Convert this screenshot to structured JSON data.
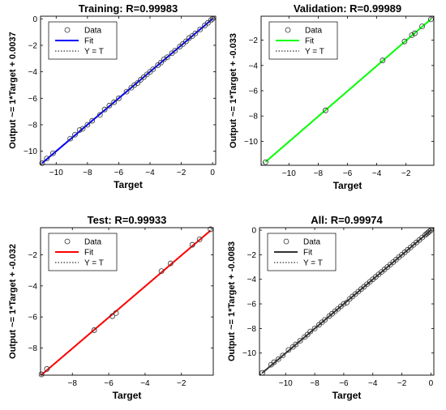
{
  "chart_data": [
    {
      "type": "scatter",
      "title": "Training: R=0.99983",
      "xlabel": "Target",
      "ylabel": "Output ~= 1*Target + 0.0037",
      "xlim": [
        -11.0,
        0.2
      ],
      "ylim": [
        -11.0,
        0.2
      ],
      "xticks": [
        -10,
        -8,
        -6,
        -4,
        -2,
        0
      ],
      "yticks": [
        -10,
        -8,
        -6,
        -4,
        -2,
        0
      ],
      "fit_color": "#0000ff",
      "fit": {
        "slope": 1,
        "intercept": 0.0037
      },
      "legend": {
        "position": "top-left",
        "entries": [
          "Data",
          "Fit",
          "Y = T"
        ]
      },
      "series": [
        {
          "role": "data",
          "points": [
            [
              -10.9,
              -10.9
            ],
            [
              -10.6,
              -10.55
            ],
            [
              -10.2,
              -10.15
            ],
            [
              -9.1,
              -9.05
            ],
            [
              -8.8,
              -8.75
            ],
            [
              -8.5,
              -8.4
            ],
            [
              -8.3,
              -8.3
            ],
            [
              -8.0,
              -8.0
            ],
            [
              -7.7,
              -7.7
            ],
            [
              -7.2,
              -7.25
            ],
            [
              -6.9,
              -6.85
            ],
            [
              -6.6,
              -6.55
            ],
            [
              -6.3,
              -6.3
            ],
            [
              -6.0,
              -6.0
            ],
            [
              -5.5,
              -5.5
            ],
            [
              -5.2,
              -5.2
            ],
            [
              -5.0,
              -5.0
            ],
            [
              -4.8,
              -4.85
            ],
            [
              -4.6,
              -4.6
            ],
            [
              -4.4,
              -4.4
            ],
            [
              -4.2,
              -4.2
            ],
            [
              -4.0,
              -4.0
            ],
            [
              -3.8,
              -3.8
            ],
            [
              -3.5,
              -3.5
            ],
            [
              -3.3,
              -3.3
            ],
            [
              -3.1,
              -3.05
            ],
            [
              -2.9,
              -2.9
            ],
            [
              -2.6,
              -2.6
            ],
            [
              -2.4,
              -2.4
            ],
            [
              -2.1,
              -2.1
            ],
            [
              -1.9,
              -1.9
            ],
            [
              -1.7,
              -1.7
            ],
            [
              -1.5,
              -1.45
            ],
            [
              -1.3,
              -1.3
            ],
            [
              -1.1,
              -1.1
            ],
            [
              -0.8,
              -0.8
            ],
            [
              -0.5,
              -0.5
            ],
            [
              -0.3,
              -0.3
            ],
            [
              -0.1,
              -0.1
            ],
            [
              0.0,
              0.0
            ]
          ]
        }
      ]
    },
    {
      "type": "scatter",
      "title": "Validation: R=0.99989",
      "xlabel": "Target",
      "ylabel": "Output ~= 1*Target + -0.033",
      "xlim": [
        -11.9,
        -0.1
      ],
      "ylim": [
        -11.9,
        -0.1
      ],
      "xticks": [
        -10,
        -8,
        -6,
        -4,
        -2
      ],
      "yticks": [
        -10,
        -8,
        -6,
        -4,
        -2
      ],
      "fit_color": "#00ff00",
      "fit": {
        "slope": 1,
        "intercept": -0.033
      },
      "legend": {
        "position": "top-left",
        "entries": [
          "Data",
          "Fit",
          "Y = T"
        ]
      },
      "series": [
        {
          "role": "data",
          "points": [
            [
              -11.6,
              -11.65
            ],
            [
              -7.5,
              -7.55
            ],
            [
              -3.6,
              -3.6
            ],
            [
              -2.1,
              -2.1
            ],
            [
              -1.6,
              -1.6
            ],
            [
              -1.4,
              -1.45
            ],
            [
              -0.9,
              -0.9
            ],
            [
              -0.3,
              -0.35
            ]
          ]
        }
      ]
    },
    {
      "type": "scatter",
      "title": "Test: R=0.99933",
      "xlabel": "Target",
      "ylabel": "Output ~= 1*Target + -0.032",
      "xlim": [
        -9.75,
        -0.25
      ],
      "ylim": [
        -9.75,
        -0.25
      ],
      "xticks": [
        -8,
        -6,
        -4,
        -2
      ],
      "yticks": [
        -8,
        -6,
        -4,
        -2
      ],
      "fit_color": "#ff0000",
      "fit": {
        "slope": 1,
        "intercept": -0.032
      },
      "legend": {
        "position": "top-left",
        "entries": [
          "Data",
          "Fit",
          "Y = T"
        ]
      },
      "series": [
        {
          "role": "data",
          "points": [
            [
              -9.7,
              -9.7
            ],
            [
              -9.4,
              -9.35
            ],
            [
              -6.8,
              -6.85
            ],
            [
              -5.8,
              -5.95
            ],
            [
              -5.6,
              -5.75
            ],
            [
              -3.1,
              -3.05
            ],
            [
              -2.6,
              -2.55
            ],
            [
              -1.4,
              -1.35
            ],
            [
              -1.0,
              -1.0
            ],
            [
              -0.4,
              -0.35
            ]
          ]
        }
      ]
    },
    {
      "type": "scatter",
      "title": "All: R=0.99974",
      "xlabel": "Target",
      "ylabel": "Output ~= 1*Target + -0.0083",
      "xlim": [
        -11.8,
        0.2
      ],
      "ylim": [
        -11.8,
        0.2
      ],
      "xticks": [
        -10,
        -8,
        -6,
        -4,
        -2,
        0
      ],
      "yticks": [
        -10,
        -8,
        -6,
        -4,
        -2,
        0
      ],
      "fit_color": "#333333",
      "fit": {
        "slope": 1,
        "intercept": -0.0083
      },
      "legend": {
        "position": "top-left",
        "entries": [
          "Data",
          "Fit",
          "Y = T"
        ]
      },
      "series": [
        {
          "role": "data",
          "points": [
            [
              -11.6,
              -11.6
            ],
            [
              -11.0,
              -10.95
            ],
            [
              -10.8,
              -10.75
            ],
            [
              -10.5,
              -10.5
            ],
            [
              -10.2,
              -10.2
            ],
            [
              -9.8,
              -9.75
            ],
            [
              -9.5,
              -9.5
            ],
            [
              -9.3,
              -9.3
            ],
            [
              -9.0,
              -9.0
            ],
            [
              -8.7,
              -8.7
            ],
            [
              -8.5,
              -8.5
            ],
            [
              -8.3,
              -8.25
            ],
            [
              -8.0,
              -8.0
            ],
            [
              -7.7,
              -7.7
            ],
            [
              -7.5,
              -7.5
            ],
            [
              -7.3,
              -7.3
            ],
            [
              -7.0,
              -7.0
            ],
            [
              -6.8,
              -6.8
            ],
            [
              -6.6,
              -6.6
            ],
            [
              -6.4,
              -6.4
            ],
            [
              -6.2,
              -6.2
            ],
            [
              -6.0,
              -6.0
            ],
            [
              -5.8,
              -5.9
            ],
            [
              -5.6,
              -5.6
            ],
            [
              -5.4,
              -5.4
            ],
            [
              -5.2,
              -5.2
            ],
            [
              -5.0,
              -5.0
            ],
            [
              -4.8,
              -4.8
            ],
            [
              -4.6,
              -4.6
            ],
            [
              -4.4,
              -4.4
            ],
            [
              -4.2,
              -4.2
            ],
            [
              -4.0,
              -4.0
            ],
            [
              -3.8,
              -3.8
            ],
            [
              -3.6,
              -3.6
            ],
            [
              -3.4,
              -3.4
            ],
            [
              -3.2,
              -3.2
            ],
            [
              -3.0,
              -3.0
            ],
            [
              -2.8,
              -2.8
            ],
            [
              -2.6,
              -2.6
            ],
            [
              -2.4,
              -2.4
            ],
            [
              -2.2,
              -2.2
            ],
            [
              -2.0,
              -2.0
            ],
            [
              -1.8,
              -1.8
            ],
            [
              -1.6,
              -1.6
            ],
            [
              -1.4,
              -1.4
            ],
            [
              -1.2,
              -1.2
            ],
            [
              -1.0,
              -1.0
            ],
            [
              -0.8,
              -0.8
            ],
            [
              -0.6,
              -0.6
            ],
            [
              -0.4,
              -0.4
            ],
            [
              -0.3,
              -0.3
            ],
            [
              -0.2,
              -0.2
            ],
            [
              -0.1,
              -0.1
            ],
            [
              0.0,
              0.0
            ]
          ]
        }
      ]
    }
  ]
}
